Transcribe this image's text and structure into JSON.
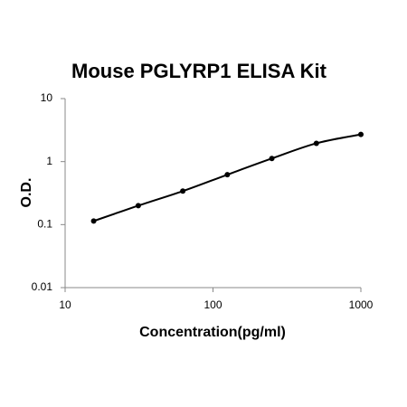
{
  "chart_data": {
    "type": "scatter",
    "title": "Mouse PGLYRP1 ELISA Kit",
    "x_label": "Concentration(pg/ml)",
    "y_label": "O.D.",
    "x": [
      15.6,
      31.25,
      62.5,
      125,
      250,
      500,
      1000
    ],
    "series": [
      {
        "color": "#000000",
        "values": [
          0.114,
          0.2,
          0.34,
          0.62,
          1.12,
          1.95,
          2.7
        ]
      }
    ],
    "xlim": [
      10,
      1000
    ],
    "xticks": [
      10,
      100,
      1000
    ],
    "ylim": [
      0.01,
      10
    ],
    "yticks": [
      0.01,
      0.1,
      1,
      10
    ],
    "xscale": "log",
    "yscale": "log",
    "grid": false
  }
}
